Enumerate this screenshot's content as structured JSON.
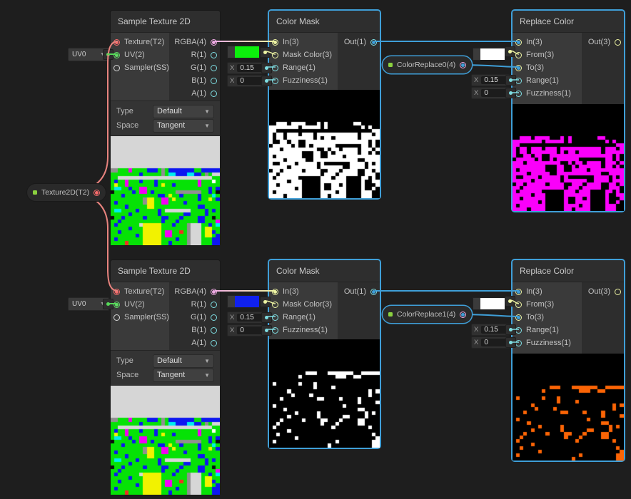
{
  "colors": {
    "canvas_bg": "#1E1E1E",
    "selection_blue": "#3F9FD8",
    "wire_texture": "#E8837E",
    "wire_uv": "#55D858",
    "wire_vector4_start": "#F2AEE6",
    "wire_vector3_end": "#EDF5A0",
    "wire_float": "#7EDDE2",
    "wire_yellow": "#EDF3A2",
    "wire_selected": "#3F9FD8",
    "port_texture": "#F76B6B",
    "port_vector4": "#EFA9E4",
    "port_vector3": "#EDF3A2",
    "port_float": "#7EDDE2",
    "port_vector2": "#62DB66",
    "port_sampler": "#D8D8D8",
    "property_dot_green": "#8BD13F"
  },
  "palette": {
    "S": "#D6D6D6",
    "A": "#909090",
    "G": "#06E206",
    "B": "#0D17F0",
    "C": "#00EDED",
    "M": "#F500F5",
    "Y": "#F2F200",
    "K": "#0C0C0C",
    "W": "#FFFFFF",
    "R": "#F03022"
  },
  "texture_grid": [
    "SSSSSSSSSSSSSSSSSSSSSSSSSSSSSS",
    "SSSSSSSSSSSSSSSSSSSSSSSSSSSSSS",
    "SSSSSSSSSSSSSSSSSSSSSSSSSSSSSS",
    "SSSSSSSSSSSSSSSSSSSSSSSSSSSSSS",
    "SSSSSSSSSSSSSSSSSSSSSSSSSSSSSS",
    "SSSSSSSSSSSSSSSSSSSSSSSSSSSSSS",
    "SSSSSSSSSSSSSSSSSSSSSSSSSSSSSS",
    "SSSSSSSSSSSSSSSSSSSSSSSSSSSSSS",
    "SSSSSSSSSSSSSSSSSSSSSSSSSSSSSS",
    "AAGGGMGGGGBBBGAGBBBBBBBGGBBBBB",
    "GGGGGGGGBGGGGGAGCCBBBCCBBGAGSS",
    "GGSSSSSSSSSSSSSSSSSSSSSSSSSSGG",
    "GBGGMGGGBGGGBGGGGGGGGGGGMGGGWG",
    "GYGGMGGGGGGGBGYGGBGGGGGGMGGGGG",
    "GCCGGBGGMMGGGGGGGGGGGGGGGGGBGB",
    "KGGGGGBGMMGBGGGGGGAAAAAAAGGBGK",
    "GGGBGGGGGGGGGBBGYGGBGGGGBGGGCG",
    "GGGGGGGGGAYYGGMMGYGGGGGGBGGYGB",
    "GBGGGGGGGAYYGGMMGGGGBGGGGGGGGG",
    "GGGGBGGGGGYYGGGGGGGGGGGGBBGGGG",
    "GCCGGGGBGGGGGBGSSSSSSSGGGGBGBG",
    "GGGGGBGGGGGGGBGGGGGGBBGGGGBGGG",
    "KGGBGGGGGBGGGGBBGGGBGGGGBBGGKG",
    "GGBGGGGGGGGGGGBGGGBGGGGGBBGGGM",
    "GBGGGGGGSYYYYYGGGBGGGASSSGGBGC",
    "GGGGGBGGGYYYYYGGGGGGGASSSGYYGG",
    "GGBGGGGGGYYYYYGMMGGRGASSSGYYBG",
    "GGGGGGGBGYYYYYGMMGGGGASSSGYYGB",
    "GBGGGGGGGYYYYYGGGGBGGASSSGGGBB",
    "GGGGRGGGGYYYYYGGBGGGGASSSGGGBB"
  ],
  "previews": {
    "mask_top": {
      "match": "G",
      "on": "#FFFFFF",
      "off": "#000000"
    },
    "replace_top": {
      "match": "G",
      "on": "#FA00FA",
      "off": "#000000"
    },
    "mask_bottom": {
      "match": "B",
      "on": "#FFFFFF",
      "off": "#000000"
    },
    "replace_bottom": {
      "match": "B",
      "on": "#FB6405",
      "off": "#000000"
    }
  },
  "pills": {
    "texture_prop": {
      "label": "Texture2D(T2)"
    },
    "uv_top": {
      "label": "UV0"
    },
    "uv_bottom": {
      "label": "UV0"
    },
    "colorreplace0": {
      "label": "ColorReplace0(4)"
    },
    "colorreplace1": {
      "label": "ColorReplace1(4)"
    }
  },
  "nodes": {
    "sample_top": {
      "title": "Sample Texture 2D",
      "inputs": [
        "Texture(T2)",
        "UV(2)",
        "Sampler(SS)"
      ],
      "outputs": [
        "RGBA(4)",
        "R(1)",
        "G(1)",
        "B(1)",
        "A(1)"
      ],
      "controls": [
        {
          "label": "Type",
          "value": "Default"
        },
        {
          "label": "Space",
          "value": "Tangent"
        }
      ]
    },
    "sample_bottom": {
      "title": "Sample Texture 2D",
      "inputs": [
        "Texture(T2)",
        "UV(2)",
        "Sampler(SS)"
      ],
      "outputs": [
        "RGBA(4)",
        "R(1)",
        "G(1)",
        "B(1)",
        "A(1)"
      ],
      "controls": [
        {
          "label": "Type",
          "value": "Default"
        },
        {
          "label": "Space",
          "value": "Tangent"
        }
      ]
    },
    "colormask_top": {
      "title": "Color Mask",
      "inputs": [
        "In(3)",
        "Mask Color(3)",
        "Range(1)",
        "Fuzziness(1)"
      ],
      "outputs": [
        "Out(1)"
      ],
      "mask_color": "#0CF00C",
      "fields": {
        "range": {
          "prefix": "X",
          "value": "0.15"
        },
        "fuzziness": {
          "prefix": "X",
          "value": "0"
        }
      }
    },
    "colormask_bottom": {
      "title": "Color Mask",
      "inputs": [
        "In(3)",
        "Mask Color(3)",
        "Range(1)",
        "Fuzziness(1)"
      ],
      "outputs": [
        "Out(1)"
      ],
      "mask_color": "#1021EE",
      "fields": {
        "range": {
          "prefix": "X",
          "value": "0.15"
        },
        "fuzziness": {
          "prefix": "X",
          "value": "0"
        }
      }
    },
    "replace_top": {
      "title": "Replace Color",
      "inputs": [
        "In(3)",
        "From(3)",
        "To(3)",
        "Range(1)",
        "Fuzziness(1)"
      ],
      "outputs": [
        "Out(3)"
      ],
      "from_color": "#FFFFFF",
      "fields": {
        "range": {
          "prefix": "X",
          "value": "0.15"
        },
        "fuzziness": {
          "prefix": "X",
          "value": "0"
        }
      }
    },
    "replace_bottom": {
      "title": "Replace Color",
      "inputs": [
        "In(3)",
        "From(3)",
        "To(3)",
        "Range(1)",
        "Fuzziness(1)"
      ],
      "outputs": [
        "Out(3)"
      ],
      "from_color": "#FFFFFF",
      "fields": {
        "range": {
          "prefix": "X",
          "value": "0.15"
        },
        "fuzziness": {
          "prefix": "X",
          "value": "0"
        }
      }
    }
  }
}
